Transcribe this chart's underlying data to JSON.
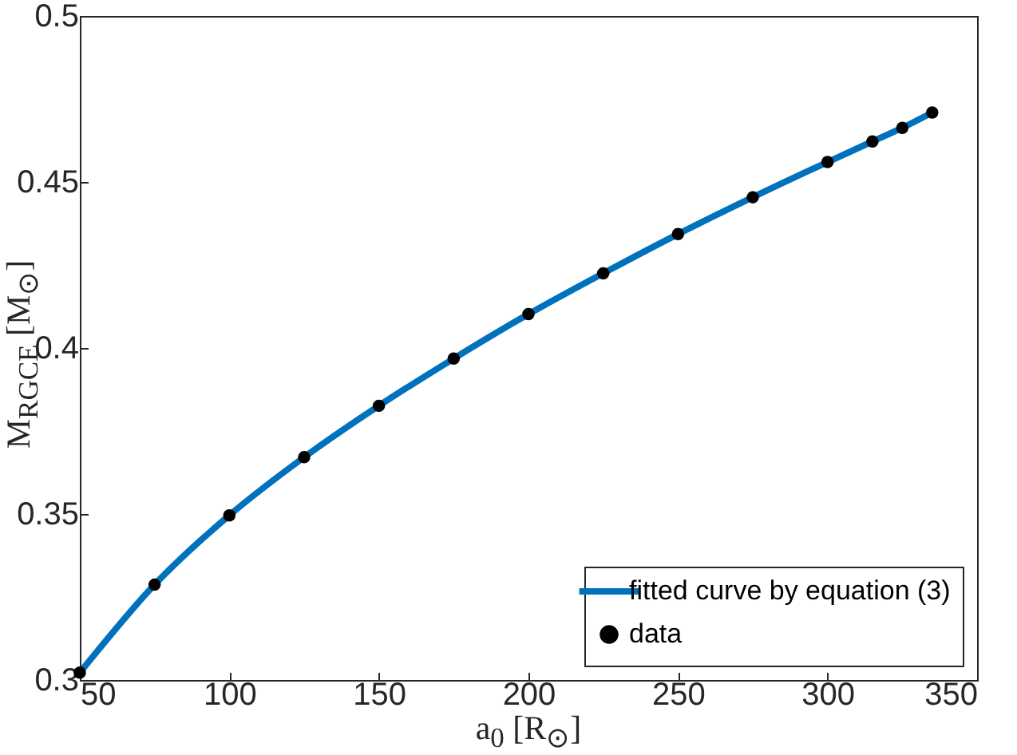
{
  "chart_data": {
    "type": "line",
    "xlabel": "a$_{0}$ [R$_{⊙}$]",
    "ylabel": "M$_{RGCE}$ [M$_{⊙}$]",
    "xlim": [
      50,
      350
    ],
    "xticks": [
      50,
      100,
      150,
      200,
      250,
      300,
      350
    ],
    "ylim": [
      0.3,
      0.5
    ],
    "yticks": [
      0.3,
      0.35,
      0.4,
      0.45,
      0.5
    ],
    "grid": false,
    "legend": "bottom right",
    "series": [
      {
        "name": "fitted curve by equation (3)",
        "type": "line",
        "color": "#0072bd",
        "line_style": "solid",
        "x": [
          50,
          75,
          100,
          125,
          150,
          175,
          200,
          225,
          250,
          275,
          300,
          315,
          325,
          335
        ],
        "values": [
          0.3022,
          0.3287,
          0.3496,
          0.3671,
          0.3826,
          0.3968,
          0.4102,
          0.4225,
          0.4343,
          0.4454,
          0.456,
          0.4622,
          0.4663,
          0.4709
        ]
      },
      {
        "name": "data",
        "type": "scatter",
        "color": "#000000",
        "marker": "circle",
        "x": [
          50,
          75,
          100,
          125,
          150,
          175,
          200,
          225,
          250,
          275,
          300,
          315,
          325,
          335
        ],
        "values": [
          0.3022,
          0.3287,
          0.3496,
          0.3671,
          0.3826,
          0.3968,
          0.4102,
          0.4225,
          0.4343,
          0.4454,
          0.456,
          0.4622,
          0.4663,
          0.4709
        ]
      }
    ]
  }
}
